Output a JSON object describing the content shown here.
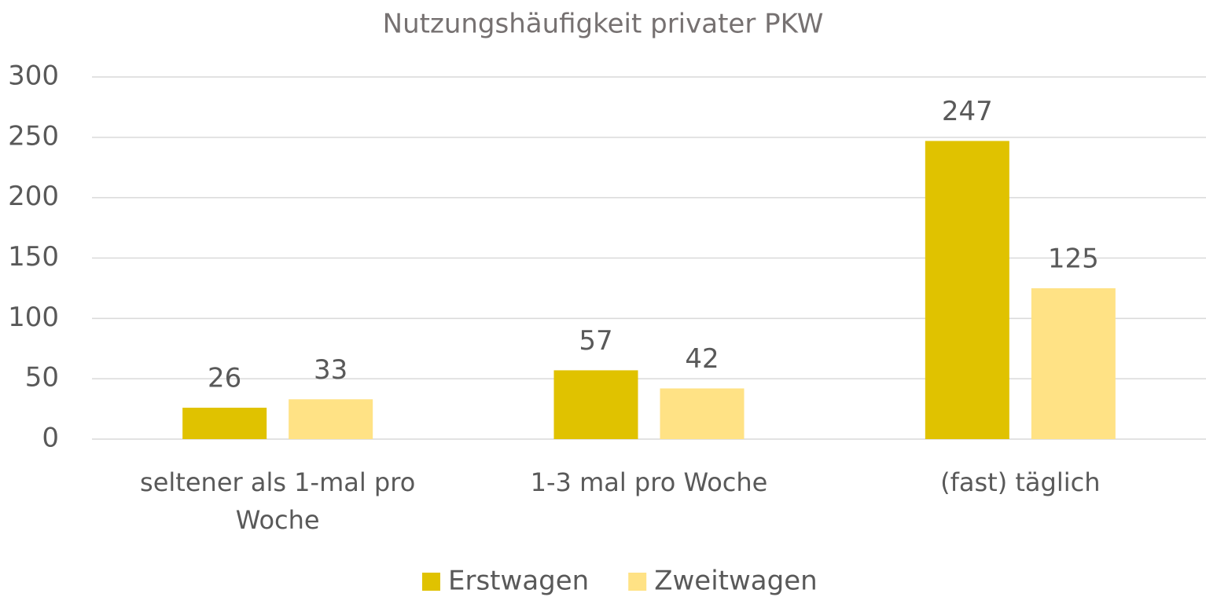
{
  "chart_data": {
    "type": "bar",
    "title": "Nutzungshäufigkeit privater PKW",
    "categories": [
      "seltener als 1-mal pro Woche",
      "1-3 mal pro Woche",
      "(fast) täglich"
    ],
    "series": [
      {
        "name": "Erstwagen",
        "color": "#e0c200",
        "values": [
          26,
          57,
          247
        ]
      },
      {
        "name": "Zweitwagen",
        "color": "#ffe285",
        "values": [
          33,
          42,
          125
        ]
      }
    ],
    "ylim": [
      0,
      300
    ],
    "yticks": [
      0,
      50,
      100,
      150,
      200,
      250,
      300
    ],
    "grid": true,
    "legend": "bottom"
  }
}
